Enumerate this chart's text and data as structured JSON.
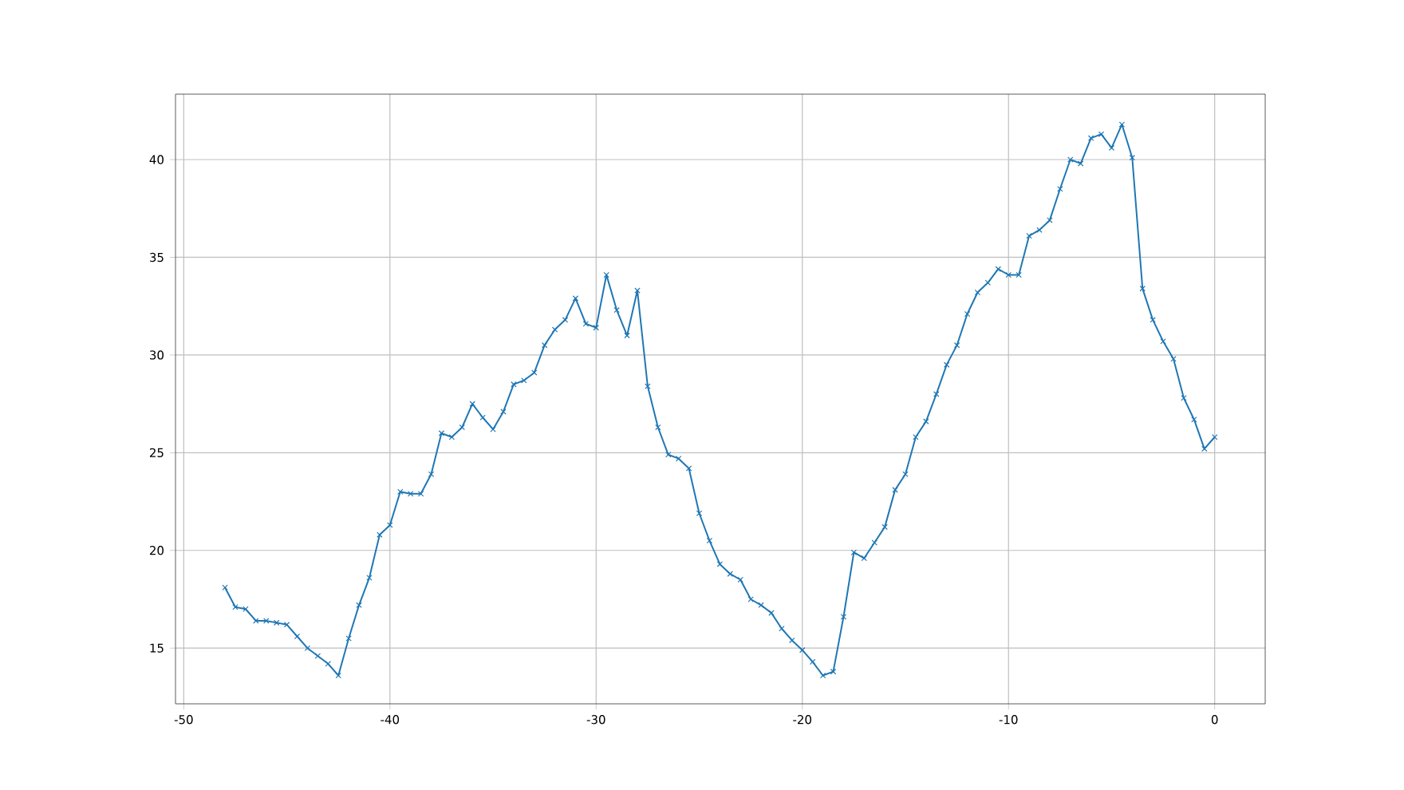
{
  "chart_data": {
    "type": "line",
    "color": "#1f77b4",
    "marker": "cross",
    "line_style": "solid",
    "grid": true,
    "x": [
      -48,
      -47.5,
      -47,
      -46.5,
      -46,
      -45.5,
      -45,
      -44.5,
      -44,
      -43.5,
      -43,
      -42.5,
      -42,
      -41.5,
      -41,
      -40.5,
      -40,
      -39.5,
      -39,
      -38.5,
      -38,
      -37.5,
      -37,
      -36.5,
      -36,
      -35.5,
      -35,
      -34.5,
      -34,
      -33.5,
      -33,
      -32.5,
      -32,
      -31.5,
      -31,
      -30.5,
      -30,
      -29.5,
      -29,
      -28.5,
      -28,
      -27.5,
      -27,
      -26.5,
      -26,
      -25.5,
      -25,
      -24.5,
      -24,
      -23.5,
      -23,
      -22.5,
      -22,
      -21.5,
      -21,
      -20.5,
      -20,
      -19.5,
      -19,
      -18.5,
      -18,
      -17.5,
      -17,
      -16.5,
      -16,
      -15.5,
      -15,
      -14.5,
      -14,
      -13.5,
      -13,
      -12.5,
      -12,
      -11.5,
      -11,
      -10.5,
      -10,
      -9.5,
      -9,
      -8.5,
      -8,
      -7.5,
      -7,
      -6.5,
      -6,
      -5.5,
      -5,
      -4.5,
      -4,
      -3.5,
      -3,
      -2.5,
      -2,
      -1.5,
      -1,
      -0.5,
      0
    ],
    "values": [
      18.1,
      17.1,
      17.0,
      16.4,
      16.4,
      16.3,
      16.2,
      15.6,
      15.0,
      14.6,
      14.2,
      13.6,
      15.5,
      17.2,
      18.6,
      20.8,
      21.3,
      23.0,
      22.9,
      22.9,
      23.9,
      26.0,
      25.8,
      26.3,
      27.5,
      26.8,
      26.2,
      27.1,
      28.5,
      28.7,
      29.1,
      30.5,
      31.3,
      31.8,
      32.9,
      31.6,
      31.4,
      34.1,
      32.3,
      31.0,
      33.3,
      28.4,
      26.3,
      24.9,
      24.7,
      24.2,
      21.9,
      20.5,
      19.3,
      18.8,
      18.5,
      17.5,
      17.2,
      16.8,
      16.0,
      15.4,
      14.9,
      14.3,
      13.6,
      13.8,
      16.6,
      19.9,
      19.6,
      20.4,
      21.2,
      23.1,
      23.9,
      25.8,
      26.6,
      28.0,
      29.5,
      30.5,
      32.1,
      33.2,
      33.7,
      34.4,
      34.1,
      34.1,
      36.1,
      36.4,
      36.9,
      38.5,
      40.0,
      39.8,
      41.1,
      41.3,
      40.6,
      41.8,
      40.1,
      33.4,
      31.8,
      30.7,
      29.8,
      27.8,
      26.7,
      25.2,
      25.8
    ],
    "xlim": [
      -50.4,
      2.45
    ],
    "ylim": [
      12.15,
      43.35
    ],
    "xticks": [
      -50,
      -40,
      -30,
      -20,
      -10,
      0
    ],
    "yticks": [
      15,
      20,
      25,
      30,
      35,
      40
    ]
  }
}
